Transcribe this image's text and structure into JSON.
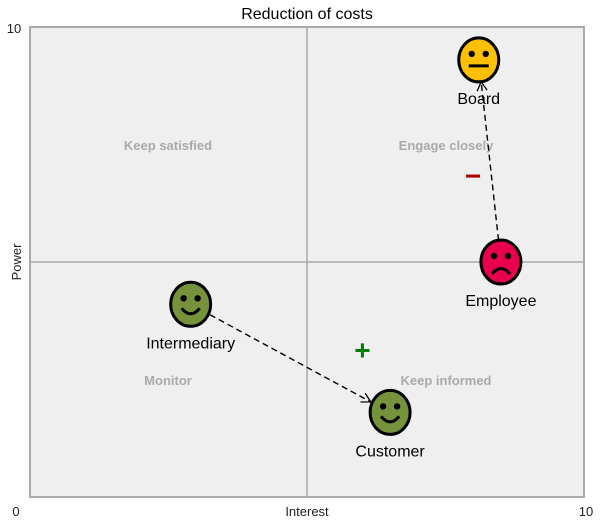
{
  "chart_data": {
    "type": "scatter",
    "title": "Reduction of costs",
    "xlabel": "Interest",
    "ylabel": "Power",
    "xlim": [
      0,
      10
    ],
    "ylim": [
      0,
      10
    ],
    "x_ticks": [
      "0",
      "10"
    ],
    "y_ticks": [
      "0",
      "10"
    ],
    "quadrant_dividers": {
      "x": 5,
      "y": 5
    },
    "quadrants": {
      "top_left": "Keep satisfied",
      "top_right": "Engage closely",
      "bottom_left": "Monitor",
      "bottom_right": "Keep informed"
    },
    "stakeholders": [
      {
        "name": "Board",
        "x": 8.1,
        "y": 9.3,
        "mood": "neutral",
        "color": "#ffc000"
      },
      {
        "name": "Employee",
        "x": 8.5,
        "y": 5.0,
        "mood": "sad",
        "color": "#e8004f"
      },
      {
        "name": "Intermediary",
        "x": 2.9,
        "y": 4.1,
        "mood": "happy",
        "color": "#76933c"
      },
      {
        "name": "Customer",
        "x": 6.5,
        "y": 1.8,
        "mood": "happy",
        "color": "#76933c"
      }
    ],
    "arrows": [
      {
        "from": "Employee",
        "to": "Board",
        "sign": "−",
        "sign_color": "#b00000",
        "sign_x": 8.0,
        "sign_y": 6.8
      },
      {
        "from": "Intermediary",
        "to": "Customer",
        "sign": "+",
        "sign_color": "#008000",
        "sign_x": 6.0,
        "sign_y": 3.1
      }
    ],
    "plot_background": "#efefef",
    "grid_color": "#aaaaaa"
  }
}
